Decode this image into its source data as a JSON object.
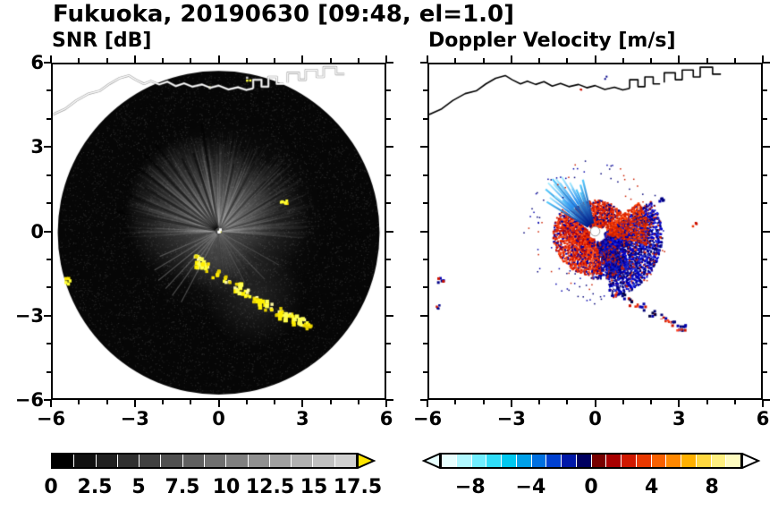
{
  "title": "Fukuoka, 20190630 [09:48, el=1.0]",
  "coastline": [
    [
      [
        -6.0,
        4.2
      ],
      [
        -5.55,
        4.4
      ],
      [
        -5.15,
        4.7
      ],
      [
        -4.7,
        4.95
      ],
      [
        -4.3,
        5.05
      ],
      [
        -3.95,
        5.3
      ],
      [
        -3.6,
        5.5
      ],
      [
        -3.25,
        5.6
      ],
      [
        -3.0,
        5.45
      ],
      [
        -2.7,
        5.3
      ],
      [
        -2.45,
        5.4
      ],
      [
        -2.15,
        5.28
      ],
      [
        -1.85,
        5.38
      ],
      [
        -1.55,
        5.22
      ],
      [
        -1.25,
        5.32
      ],
      [
        -0.95,
        5.2
      ],
      [
        -0.6,
        5.28
      ],
      [
        -0.3,
        5.16
      ],
      [
        0.0,
        5.24
      ],
      [
        0.35,
        5.1
      ],
      [
        0.7,
        5.18
      ],
      [
        1.0,
        5.08
      ],
      [
        1.25,
        5.14
      ]
    ],
    [
      [
        1.25,
        5.14
      ],
      [
        1.25,
        5.45
      ],
      [
        1.55,
        5.45
      ],
      [
        1.55,
        5.2
      ],
      [
        1.8,
        5.2
      ],
      [
        1.8,
        5.55
      ],
      [
        2.1,
        5.55
      ],
      [
        2.1,
        5.3
      ],
      [
        2.35,
        5.3
      ]
    ],
    [
      [
        2.5,
        5.35
      ],
      [
        2.5,
        5.7
      ],
      [
        2.9,
        5.7
      ],
      [
        2.9,
        5.45
      ],
      [
        3.15,
        5.45
      ],
      [
        3.15,
        5.8
      ],
      [
        3.55,
        5.8
      ],
      [
        3.55,
        5.55
      ],
      [
        3.8,
        5.55
      ],
      [
        3.8,
        5.9
      ],
      [
        4.25,
        5.9
      ],
      [
        4.25,
        5.65
      ],
      [
        4.55,
        5.65
      ]
    ]
  ],
  "chart_data": [
    {
      "type": "heatmap",
      "title": "SNR [dB]",
      "xlabel": "",
      "ylabel": "",
      "xlim": [
        -6,
        6
      ],
      "ylim": [
        -6,
        6
      ],
      "minor_tick_step": 1,
      "yticklabels_shown": true,
      "xticks": [
        {
          "v": -6,
          "t": "−6"
        },
        {
          "v": -3,
          "t": "−3"
        },
        {
          "v": 0,
          "t": "0"
        },
        {
          "v": 3,
          "t": "3"
        },
        {
          "v": 6,
          "t": "6"
        }
      ],
      "yticks": [
        {
          "v": 6,
          "t": "6"
        },
        {
          "v": 3,
          "t": "3"
        },
        {
          "v": 0,
          "t": "0"
        },
        {
          "v": -3,
          "t": "−3"
        },
        {
          "v": -6,
          "t": "−6"
        }
      ],
      "colorbar": {
        "min": 0,
        "max": 17.5,
        "labels": [
          {
            "v": 0,
            "t": "0"
          },
          {
            "v": 2.5,
            "t": "2.5"
          },
          {
            "v": 5,
            "t": "5"
          },
          {
            "v": 7.5,
            "t": "7.5"
          },
          {
            "v": 10,
            "t": "10"
          },
          {
            "v": 12.5,
            "t": "12.5"
          },
          {
            "v": 15,
            "t": "15"
          },
          {
            "v": 17.5,
            "t": "17.5"
          }
        ],
        "segments": [
          "#000000",
          "#101010",
          "#202020",
          "#303030",
          "#404040",
          "#505050",
          "#606060",
          "#707070",
          "#808080",
          "#909090",
          "#a0a0a0",
          "#b0b0b0",
          "#c0c0c0",
          "#d0d0d0"
        ],
        "over_arrow": "#ffe600"
      },
      "features": [
        {
          "kind": "disk",
          "cx": 0,
          "cy": -0.05,
          "r": 5.82,
          "fill": "#060606"
        },
        {
          "kind": "speckle",
          "cx": 0,
          "cy": -0.05,
          "r": 5.76,
          "n": 9000,
          "gmin": 8,
          "gmax": 46,
          "size": 1.2
        },
        {
          "kind": "glow",
          "cx": -0.7,
          "cy": 0.75,
          "r": 2.7,
          "rgb": "168,168,168",
          "alpha": 0.4
        },
        {
          "kind": "glow",
          "cx": 1.0,
          "cy": 0.4,
          "r": 2.3,
          "rgb": "150,150,150",
          "alpha": 0.26
        },
        {
          "kind": "glow",
          "cx": 0.2,
          "cy": 0.4,
          "r": 3.7,
          "rgb": "120,120,120",
          "alpha": 0.16
        },
        {
          "kind": "rays",
          "cx": 0,
          "cy": 0,
          "a0": -5,
          "a1": 185,
          "n": 750,
          "r0": 0.12,
          "r1min": 0.7,
          "r1max": 3.6,
          "color": "#c8c8c8",
          "alpha": 0.05,
          "w": 1.4
        },
        {
          "kind": "rays",
          "cx": 0,
          "cy": 0,
          "a0": 185,
          "a1": 355,
          "n": 220,
          "r0": 0.12,
          "r1min": 0.5,
          "r1max": 2.3,
          "color": "#9a9a9a",
          "alpha": 0.03,
          "w": 1.4
        },
        {
          "kind": "spokes",
          "cx": 0,
          "cy": 0,
          "angles": [
            99,
            108,
            117,
            126,
            134,
            142,
            150,
            158,
            169
          ],
          "r1": 3.4,
          "color": "#000000",
          "alpha": 0.5,
          "w": 2.6
        },
        {
          "kind": "spokes",
          "cx": 0,
          "cy": 0,
          "angles": [
            16,
            31,
            47,
            62,
            77
          ],
          "r1": 2.9,
          "color": "#000000",
          "alpha": 0.38,
          "w": 2.2
        },
        {
          "kind": "spokes",
          "cx": 0,
          "cy": 0,
          "angles": [
            203,
            211,
            219,
            227,
            234,
            242
          ],
          "r1": 2.7,
          "color": "#8a8a8a",
          "alpha": 0.5,
          "w": 1.2
        },
        {
          "kind": "spokes",
          "cx": 0,
          "cy": 0,
          "angles": [
            297,
            314,
            331
          ],
          "r1": 2.2,
          "color": "#707070",
          "alpha": 0.4,
          "w": 1.2
        },
        {
          "kind": "glow",
          "cx": 1.3,
          "cy": -2.4,
          "r": 1.8,
          "rgb": "135,135,135",
          "alpha": 0.22
        },
        {
          "kind": "glow",
          "cx": -0.1,
          "cy": -1.15,
          "r": 1.2,
          "rgb": "150,150,150",
          "alpha": 0.2
        },
        {
          "kind": "blobs",
          "pts": [
            [
              -0.85,
              -0.95
            ],
            [
              -0.55,
              -1.25
            ],
            [
              -0.15,
              -1.5
            ],
            [
              0.25,
              -1.72
            ],
            [
              0.6,
              -1.95
            ],
            [
              0.95,
              -2.2
            ],
            [
              1.35,
              -2.45
            ],
            [
              1.75,
              -2.65
            ],
            [
              2.15,
              -2.85
            ],
            [
              2.55,
              -3.05
            ],
            [
              2.95,
              -3.25
            ],
            [
              3.2,
              -3.35
            ]
          ],
          "colors": [
            "#ffff33",
            "#ffe800",
            "#fff9a0",
            "#e6d000"
          ],
          "n": 7,
          "jitter": 0.14,
          "size": 3.5
        },
        {
          "kind": "blobs",
          "pts": [
            [
              0.7,
              -2.0
            ],
            [
              1.5,
              -2.55
            ],
            [
              2.3,
              -2.95
            ],
            [
              2.8,
              -3.15
            ],
            [
              -0.7,
              -1.1
            ]
          ],
          "colors": [
            "#ffef00",
            "#ffff55"
          ],
          "n": 9,
          "jitter": 0.18,
          "size": 4.5
        },
        {
          "kind": "blobs",
          "pts": [
            [
              -5.55,
              -1.75
            ]
          ],
          "colors": [
            "#ffff33",
            "#ffe800"
          ],
          "n": 6,
          "jitter": 0.12,
          "size": 3.5
        },
        {
          "kind": "blobs",
          "pts": [
            [
              2.28,
              1.16
            ],
            [
              2.45,
              1.1
            ]
          ],
          "colors": [
            "#ffff33",
            "#ffd900"
          ],
          "n": 4,
          "jitter": 0.08,
          "size": 3
        },
        {
          "kind": "blobs",
          "pts": [
            [
              0.02,
              0.08
            ]
          ],
          "colors": [
            "#ffff66",
            "#ffffff"
          ],
          "n": 4,
          "jitter": 0.07,
          "size": 3
        },
        {
          "kind": "blobs",
          "pts": [
            [
              -0.38,
              5.18
            ],
            [
              1.05,
              5.5
            ]
          ],
          "colors": [
            "#ffff44",
            "#cccccc"
          ],
          "n": 3,
          "jitter": 0.07,
          "size": 2.5
        },
        {
          "kind": "coast",
          "color": "#ffffff",
          "w": 1.4,
          "under": "#999999",
          "underw": 2.6
        }
      ]
    },
    {
      "type": "heatmap",
      "title": "Doppler Velocity [m/s]",
      "xlabel": "",
      "ylabel": "",
      "xlim": [
        -6,
        6
      ],
      "ylim": [
        -6,
        6
      ],
      "minor_tick_step": 1,
      "yticklabels_shown": false,
      "xticks": [
        {
          "v": -6,
          "t": "−6"
        },
        {
          "v": -3,
          "t": "−3"
        },
        {
          "v": 0,
          "t": "0"
        },
        {
          "v": 3,
          "t": "3"
        },
        {
          "v": 6,
          "t": "6"
        }
      ],
      "yticks": [
        {
          "v": 6,
          "t": "6"
        },
        {
          "v": 3,
          "t": "3"
        },
        {
          "v": 0,
          "t": "0"
        },
        {
          "v": -3,
          "t": "−3"
        },
        {
          "v": -6,
          "t": "−6"
        }
      ],
      "colorbar": {
        "min": -10,
        "max": 10,
        "labels": [
          {
            "v": -8,
            "t": "−8"
          },
          {
            "v": -4,
            "t": "−4"
          },
          {
            "v": 0,
            "t": "0"
          },
          {
            "v": 4,
            "t": "4"
          },
          {
            "v": 8,
            "t": "8"
          }
        ],
        "segments": [
          "#e8ffff",
          "#b0f8ff",
          "#70eeff",
          "#30ddf8",
          "#00c8f0",
          "#00a0e8",
          "#0070e0",
          "#0040d0",
          "#0018a8",
          "#000060",
          "#780000",
          "#a80000",
          "#d01800",
          "#e83800",
          "#f86000",
          "#ff8800",
          "#ffb000",
          "#ffd840",
          "#fff080",
          "#fffcc0"
        ],
        "under_arrow": "#e8ffff",
        "over_arrow": "#ffffff"
      },
      "features": [
        {
          "kind": "coast",
          "color": "#000000",
          "w": 1.6
        },
        {
          "kind": "scatter",
          "cx": 0.15,
          "cy": -0.15,
          "a0": -80,
          "a1": 35,
          "r0": 0.18,
          "r1": 2.25,
          "n": 2800,
          "q": 30,
          "colors": [
            "#0000cc",
            "#000088",
            "#0000cc",
            "#000066",
            "#2233dd",
            "#cc2200"
          ],
          "size": 2
        },
        {
          "kind": "scatter",
          "cx": 0.1,
          "cy": -0.1,
          "a0": -100,
          "a1": -45,
          "r0": 0.25,
          "r1": 1.6,
          "n": 650,
          "q": 14,
          "colors": [
            "#0000bb",
            "#000077",
            "#1122cc",
            "#cc2200"
          ],
          "size": 2
        },
        {
          "kind": "scatter",
          "cx": -0.1,
          "cy": -0.1,
          "a0": 140,
          "a1": 285,
          "r0": 0.15,
          "r1": 1.45,
          "n": 1700,
          "q": 24,
          "colors": [
            "#dd2200",
            "#ee3300",
            "#bb0000",
            "#ff5522",
            "#0000aa"
          ],
          "size": 2
        },
        {
          "kind": "scatter",
          "cx": 0,
          "cy": 0,
          "a0": 35,
          "a1": 140,
          "r0": 0.2,
          "r1": 1.15,
          "n": 750,
          "q": 18,
          "colors": [
            "#dd2200",
            "#cc1100",
            "#ff4411",
            "#ee3300",
            "#000088"
          ],
          "size": 2
        },
        {
          "kind": "scatter",
          "cx": 0,
          "cy": 0,
          "a0": -15,
          "a1": 35,
          "r0": 0.4,
          "r1": 1.9,
          "n": 450,
          "q": 12,
          "colors": [
            "#dd2200",
            "#ff4400",
            "#cc2200"
          ],
          "size": 2
        },
        {
          "kind": "fanrays",
          "cx": 0,
          "cy": 0,
          "a0": 102,
          "a1": 150,
          "n": 13,
          "r0": 0.3,
          "r1min": 1.3,
          "r1max": 2.45,
          "c0": "#001a88",
          "c1": "#55ccff",
          "w": 2.2
        },
        {
          "kind": "fanrays",
          "cx": 0,
          "cy": 0,
          "a0": 116,
          "a1": 146,
          "n": 7,
          "r0": 1.15,
          "r1min": 1.9,
          "r1max": 2.5,
          "c0": "#2288ee",
          "c1": "#aaeeff",
          "w": 2
        },
        {
          "kind": "scatter",
          "cx": 0,
          "cy": 0,
          "a0": 0,
          "a1": 360,
          "r0": 1.6,
          "r1": 2.6,
          "n": 110,
          "colors": [
            "#0000aa",
            "#cc2200",
            "#000077"
          ],
          "size": 1.5
        },
        {
          "kind": "disk",
          "cx": 0,
          "cy": 0,
          "r": 0.17,
          "fill": "#ffffff"
        },
        {
          "kind": "ring",
          "cx": 0,
          "cy": 0,
          "r": 0.17,
          "color": "#999999",
          "w": 1
        },
        {
          "kind": "blobs",
          "pts": [
            [
              0.55,
              -2.1
            ],
            [
              0.9,
              -2.28
            ],
            [
              1.3,
              -2.5
            ],
            [
              1.7,
              -2.68
            ],
            [
              2.05,
              -2.88
            ],
            [
              2.45,
              -3.05
            ],
            [
              2.85,
              -3.28
            ],
            [
              3.1,
              -3.4
            ]
          ],
          "colors": [
            "#000077",
            "#0000aa",
            "#000044",
            "#cc1100",
            "#ffffff"
          ],
          "n": 7,
          "jitter": 0.13,
          "size": 3
        },
        {
          "kind": "blobs",
          "pts": [
            [
              0.7,
              -2.2
            ],
            [
              1.5,
              -2.6
            ],
            [
              2.6,
              -3.15
            ],
            [
              3.0,
              -3.45
            ]
          ],
          "colors": [
            "#dd2200",
            "#ff4422"
          ],
          "n": 3,
          "jitter": 0.1,
          "size": 2.5
        },
        {
          "kind": "blobs",
          "pts": [
            [
              -5.62,
              -1.72
            ]
          ],
          "colors": [
            "#000088",
            "#cc1100",
            "#0000bb"
          ],
          "n": 6,
          "jitter": 0.1,
          "size": 3
        },
        {
          "kind": "blobs",
          "pts": [
            [
              -5.72,
              -2.7
            ]
          ],
          "colors": [
            "#cc1100",
            "#000088"
          ],
          "n": 4,
          "jitter": 0.08,
          "size": 2.5
        },
        {
          "kind": "blobs",
          "pts": [
            [
              2.35,
              1.15
            ]
          ],
          "colors": [
            "#000077",
            "#0000aa"
          ],
          "n": 5,
          "jitter": 0.1,
          "size": 3
        },
        {
          "kind": "blobs",
          "pts": [
            [
              3.55,
              0.3
            ]
          ],
          "colors": [
            "#cc1100",
            "#ee3300"
          ],
          "n": 4,
          "jitter": 0.09,
          "size": 2.5
        },
        {
          "kind": "blobs",
          "pts": [
            [
              0.35,
              5.55
            ]
          ],
          "colors": [
            "#000088"
          ],
          "n": 2,
          "jitter": 0.06,
          "size": 2
        },
        {
          "kind": "blobs",
          "pts": [
            [
              -0.5,
              5.18
            ]
          ],
          "colors": [
            "#cc1100"
          ],
          "n": 2,
          "jitter": 0.06,
          "size": 2
        }
      ]
    }
  ]
}
